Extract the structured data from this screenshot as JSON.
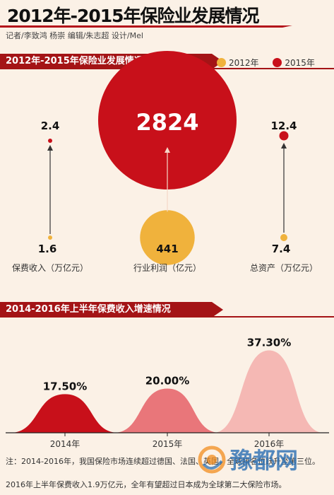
{
  "header": {
    "title": "2012年-2015年保险业发展情况",
    "credits": "记者/李致鸿 杨崇 编辑/朱志超 设计/Mel"
  },
  "section1": {
    "title": "2012年-2015年保险业发展情况"
  },
  "section2": {
    "title": "2014-2016年上半年保费收入增速情况"
  },
  "legend": [
    {
      "label": "2012年",
      "color": "#f0b23c"
    },
    {
      "label": "2015年",
      "color": "#c8101a"
    }
  ],
  "chart_data": [
    {
      "type": "bubble",
      "categories": [
        "保费收入（万亿元）",
        "行业利润（亿元）",
        "总资产（万亿元）"
      ],
      "series": [
        {
          "name": "2012年",
          "values": [
            1.6,
            441,
            7.4
          ],
          "labels": [
            "1.6",
            "441",
            "7.4"
          ],
          "color": "#f0b23c"
        },
        {
          "name": "2015年",
          "values": [
            2.4,
            2824,
            12.4
          ],
          "labels": [
            "2.4",
            "2824",
            "12.4"
          ],
          "color": "#c8101a"
        }
      ]
    },
    {
      "type": "area",
      "categories": [
        "2014年",
        "2015年",
        "2016年"
      ],
      "values": [
        17.5,
        20.0,
        37.3
      ],
      "labels": [
        "17.50%",
        "20.00%",
        "37.30%"
      ],
      "colors": [
        "#c8101a",
        "#e9767a",
        "#f5b8b4"
      ]
    }
  ],
  "notes": [
    "注：2014-2016年，我国保险市场连续超过德国、法国、英国，全球排名位跃升至第三位。",
    "2016年上半年保费收入1.9万亿元，全年有望超过日本成为全球第二大保险市场。"
  ],
  "watermark": "豫都网"
}
